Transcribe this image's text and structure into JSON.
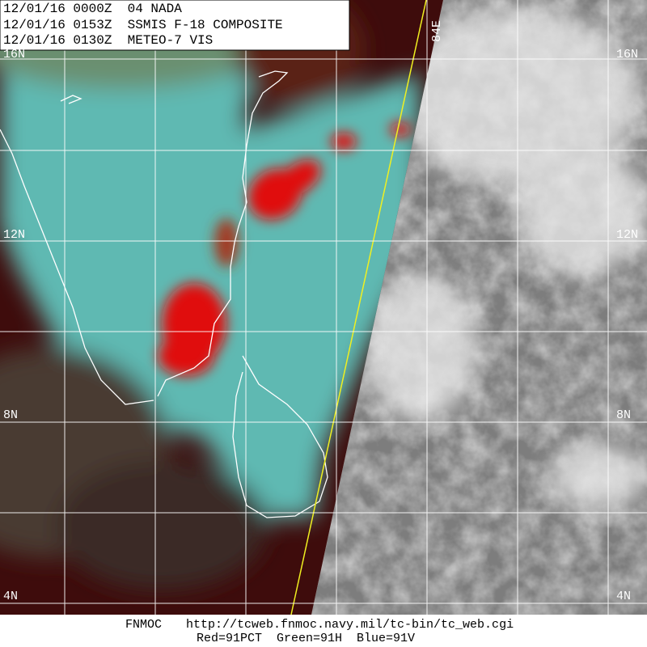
{
  "header": {
    "lines": [
      "12/01/16 0000Z  04 NADA",
      "12/01/16 0153Z  SSMIS F-18 COMPOSITE",
      "12/01/16 0130Z  METEO-7 VIS"
    ]
  },
  "grid": {
    "latitude_labels": [
      "16N",
      "12N",
      "8N",
      "4N"
    ],
    "longitude_labels": [
      "84E"
    ]
  },
  "footer": {
    "source": "FNMOC",
    "url": "http://tcweb.fnmoc.navy.mil/tc-bin/tc_web.cgi",
    "channels": "Red=91PCT  Green=91H  Blue=91V"
  }
}
